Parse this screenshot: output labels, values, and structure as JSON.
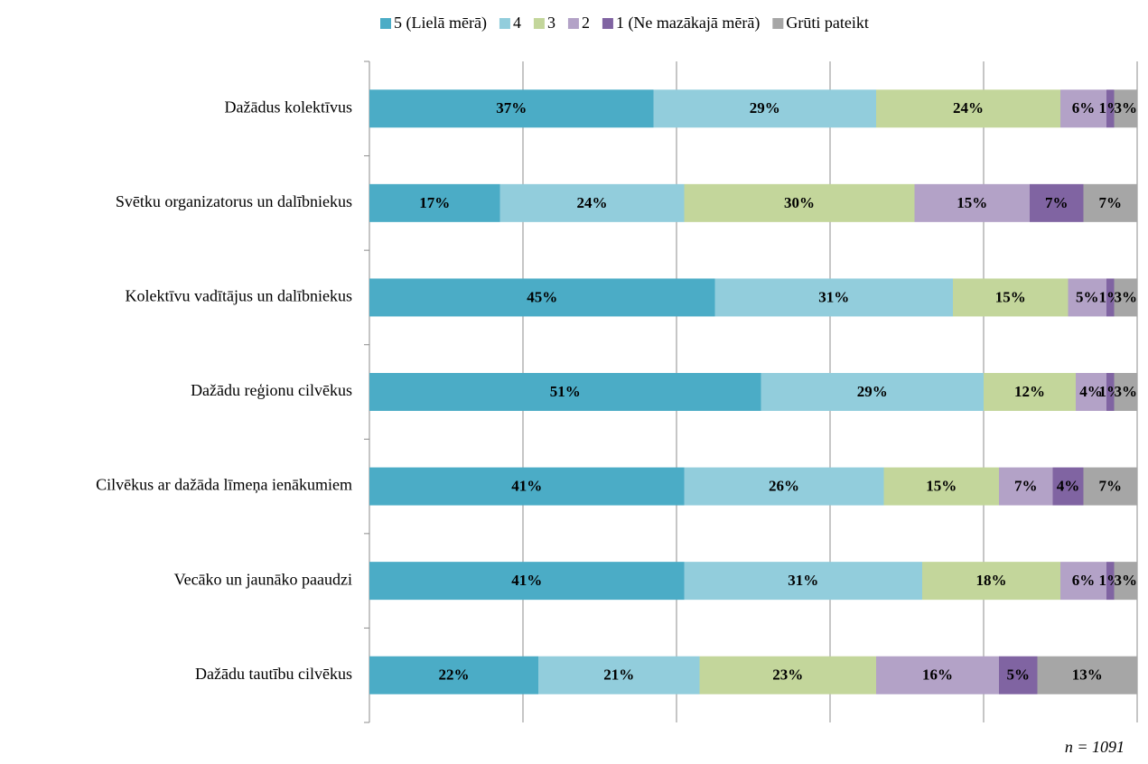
{
  "chart_data": {
    "type": "stacked-barh",
    "categories": [
      "Dažādus kolektīvus",
      "Svētku organizatorus un dalībniekus",
      "Kolektīvu vadītājus un dalībniekus",
      "Dažādu reģionu cilvēkus",
      "Cilvēkus ar dažāda līmeņa ienākumiem",
      "Vecāko un jaunāko paaudzi",
      "Dažādu tautību cilvēkus"
    ],
    "series": [
      {
        "name": "5 (Lielā mērā)",
        "color": "#4bacc6",
        "values": [
          37,
          17,
          45,
          51,
          41,
          41,
          22
        ],
        "value_labels": [
          "37%",
          "17%",
          "45%",
          "51%",
          "41%",
          "41%",
          "22%"
        ]
      },
      {
        "name": "4",
        "color": "#92cddc",
        "values": [
          29,
          24,
          31,
          29,
          26,
          31,
          21
        ],
        "value_labels": [
          "29%",
          "24%",
          "31%",
          "29%",
          "26%",
          "31%",
          "21%"
        ]
      },
      {
        "name": "3",
        "color": "#c3d69b",
        "values": [
          24,
          30,
          15,
          12,
          15,
          18,
          23
        ],
        "value_labels": [
          "24%",
          "30%",
          "15%",
          "12%",
          "15%",
          "18%",
          "23%"
        ]
      },
      {
        "name": "2",
        "color": "#b3a2c7",
        "values": [
          6,
          15,
          5,
          4,
          7,
          6,
          16
        ],
        "value_labels": [
          "6%",
          "15%",
          "5%",
          "4%",
          "7%",
          "6%",
          "16%"
        ]
      },
      {
        "name": "1 (Ne mazākajā mērā)",
        "color": "#8064a2",
        "values": [
          1,
          7,
          1,
          1,
          4,
          1,
          5
        ],
        "value_labels": [
          "1%",
          "7%",
          "1%",
          "1%",
          "4%",
          "1%",
          "5%"
        ]
      },
      {
        "name": "Grūti pateikt",
        "color": "#a6a6a6",
        "values": [
          3,
          7,
          3,
          3,
          7,
          3,
          13
        ],
        "value_labels": [
          "3%",
          "7%",
          "3%",
          "3%",
          "7%",
          "3%",
          "13%"
        ]
      }
    ],
    "xlim": [
      0,
      100
    ],
    "xticks": [
      0,
      20,
      40,
      60,
      80,
      100
    ],
    "grid": true,
    "legend": "top",
    "annotation": "n = 1091"
  }
}
